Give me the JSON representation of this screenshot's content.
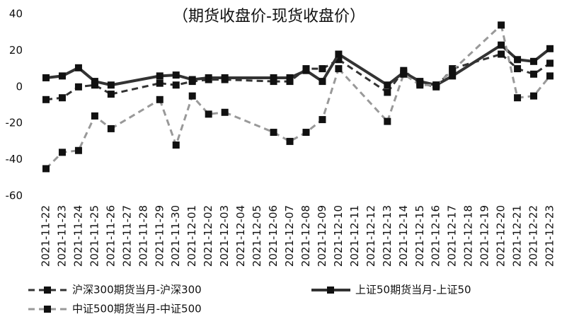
{
  "chart_data": {
    "type": "line",
    "title": "（期货收盘价-现货收盘价）",
    "categories": [
      "2021-11-22",
      "2021-11-23",
      "2021-11-24",
      "2021-11-25",
      "2021-11-26",
      "2021-11-27",
      "2021-11-28",
      "2021-11-29",
      "2021-11-30",
      "2021-12-01",
      "2021-12-02",
      "2021-12-03",
      "2021-12-04",
      "2021-12-05",
      "2021-12-06",
      "2021-12-07",
      "2021-12-08",
      "2021-12-09",
      "2021-12-10",
      "2021-12-11",
      "2021-12-12",
      "2021-12-13",
      "2021-12-14",
      "2021-12-15",
      "2021-12-16",
      "2021-12-17",
      "2021-12-18",
      "2021-12-19",
      "2021-12-20",
      "2021-12-21",
      "2021-12-22",
      "2021-12-23"
    ],
    "series": [
      {
        "name": "沪深300期货当月-沪深300",
        "color": "#333333",
        "dash": "dashed",
        "values": [
          -7,
          -6,
          0,
          1,
          -4,
          null,
          null,
          2,
          1,
          3,
          4,
          4,
          null,
          null,
          3,
          3,
          10,
          10,
          15,
          null,
          null,
          -3,
          9,
          2,
          0,
          10,
          null,
          null,
          18,
          10,
          7,
          13
        ]
      },
      {
        "name": "上证50期货当月-上证50",
        "color": "#333333",
        "dash": "solid",
        "values": [
          5,
          6,
          10.5,
          3,
          1,
          null,
          null,
          6,
          6.5,
          4,
          5,
          5,
          null,
          null,
          5,
          5,
          9,
          3,
          18,
          null,
          null,
          1,
          8,
          3,
          1,
          6,
          null,
          null,
          23,
          15,
          14,
          21
        ]
      },
      {
        "name": "中证500期货当月-中证500",
        "color": "#999999",
        "dash": "dashed",
        "values": [
          -45,
          -36,
          -35,
          -16,
          -23,
          null,
          null,
          -7,
          -32,
          -5,
          -15,
          -14,
          null,
          null,
          -25,
          -30,
          -25,
          -18,
          10,
          null,
          null,
          -19,
          7,
          1,
          1,
          9,
          null,
          null,
          34,
          -6,
          -5,
          6
        ]
      }
    ],
    "ylim": [
      -60,
      40
    ],
    "yticks": [
      40,
      20,
      0,
      -20,
      -40,
      -60
    ]
  }
}
